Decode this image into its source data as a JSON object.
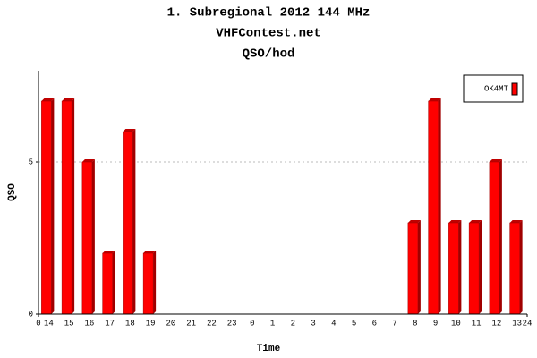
{
  "chart_data": {
    "type": "bar",
    "title": "1. Subregional 2012 144 MHz",
    "subtitle": "VHFContest.net",
    "subtitle2": "QSO/hod",
    "x_label": "Time",
    "y_label": "QSO",
    "categories": [
      "14",
      "15",
      "16",
      "17",
      "18",
      "19",
      "20",
      "21",
      "22",
      "23",
      "0",
      "1",
      "2",
      "3",
      "4",
      "5",
      "6",
      "7",
      "8",
      "9",
      "10",
      "11",
      "12",
      "13"
    ],
    "series": [
      {
        "name": "OK4MT",
        "color": "#ff0000",
        "values": [
          7,
          7,
          5,
          2,
          6,
          2,
          0,
          0,
          0,
          0,
          0,
          0,
          0,
          0,
          0,
          0,
          0,
          0,
          3,
          7,
          3,
          3,
          5,
          3
        ]
      }
    ],
    "xlim": [
      0,
      24
    ],
    "xticks": [
      0,
      24
    ],
    "ylim": [
      0,
      8
    ],
    "yticks": [
      0,
      5
    ],
    "grid": true,
    "legend": "top-right"
  }
}
